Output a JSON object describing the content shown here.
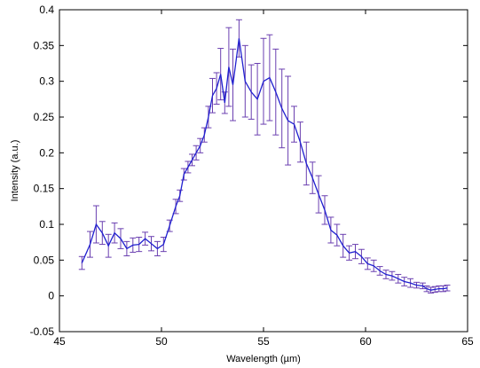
{
  "chart_data": {
    "type": "line",
    "title": "",
    "xlabel": "Wavelength (µm)",
    "ylabel": "Intensity (a.u.)",
    "xlim": [
      45,
      65
    ],
    "ylim": [
      -0.05,
      0.4
    ],
    "xticks": [
      "45",
      "50",
      "55",
      "60",
      "65"
    ],
    "yticks": [
      "-0.05",
      "0",
      "0.05",
      "0.1",
      "0.15",
      "0.2",
      "0.25",
      "0.3",
      "0.35",
      "0.4"
    ],
    "grid": false,
    "legend": "none",
    "line_color": "#2020d0",
    "error_color": "#6a3fb0",
    "series": [
      {
        "x": [
          46.1,
          46.5,
          46.8,
          47.1,
          47.4,
          47.7,
          48.0,
          48.3,
          48.6,
          48.9,
          49.2,
          49.5,
          49.8,
          50.1,
          50.4,
          50.7,
          50.9,
          51.1,
          51.3,
          51.5,
          51.7,
          51.9,
          52.1,
          52.3,
          52.5,
          52.7,
          52.9,
          53.1,
          53.3,
          53.5,
          53.8,
          54.1,
          54.4,
          54.7,
          55.0,
          55.3,
          55.6,
          55.9,
          56.2,
          56.5,
          56.8,
          57.1,
          57.4,
          57.7,
          58.0,
          58.3,
          58.6,
          58.9,
          59.2,
          59.5,
          59.8,
          60.1,
          60.4,
          60.7,
          61.0,
          61.3,
          61.6,
          61.9,
          62.2,
          62.5,
          62.8,
          63.0,
          63.2,
          63.4,
          63.6,
          63.8,
          64.0
        ],
        "y": [
          0.046,
          0.072,
          0.1,
          0.088,
          0.07,
          0.088,
          0.08,
          0.066,
          0.071,
          0.072,
          0.08,
          0.073,
          0.066,
          0.072,
          0.098,
          0.125,
          0.14,
          0.17,
          0.18,
          0.19,
          0.2,
          0.21,
          0.225,
          0.25,
          0.28,
          0.29,
          0.31,
          0.27,
          0.32,
          0.295,
          0.36,
          0.3,
          0.285,
          0.275,
          0.3,
          0.305,
          0.285,
          0.262,
          0.245,
          0.24,
          0.215,
          0.185,
          0.165,
          0.142,
          0.12,
          0.092,
          0.085,
          0.07,
          0.06,
          0.062,
          0.055,
          0.045,
          0.042,
          0.035,
          0.03,
          0.028,
          0.024,
          0.02,
          0.018,
          0.015,
          0.014,
          0.01,
          0.008,
          0.009,
          0.01,
          0.01,
          0.011
        ],
        "err": [
          0.009,
          0.018,
          0.026,
          0.016,
          0.016,
          0.014,
          0.014,
          0.01,
          0.01,
          0.01,
          0.009,
          0.01,
          0.01,
          0.01,
          0.008,
          0.01,
          0.008,
          0.008,
          0.008,
          0.008,
          0.01,
          0.01,
          0.01,
          0.015,
          0.024,
          0.022,
          0.036,
          0.015,
          0.055,
          0.05,
          0.026,
          0.05,
          0.038,
          0.05,
          0.06,
          0.06,
          0.06,
          0.055,
          0.062,
          0.025,
          0.028,
          0.03,
          0.022,
          0.026,
          0.02,
          0.018,
          0.015,
          0.016,
          0.01,
          0.01,
          0.01,
          0.008,
          0.008,
          0.006,
          0.006,
          0.006,
          0.006,
          0.006,
          0.006,
          0.004,
          0.004,
          0.004,
          0.004,
          0.004,
          0.004,
          0.004,
          0.004
        ]
      }
    ]
  }
}
